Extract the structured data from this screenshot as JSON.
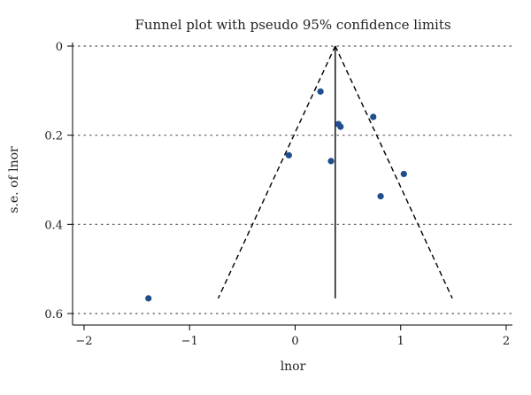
{
  "chart_data": {
    "type": "scatter",
    "title": "Funnel plot with pseudo 95% confidence limits",
    "xlabel": "lnor",
    "ylabel": "s.e. of lnor",
    "xlim": [
      -2,
      2
    ],
    "ylim": [
      0,
      0.6
    ],
    "y_reversed": true,
    "x_ticks": [
      -2,
      -1,
      0,
      1,
      2
    ],
    "x_tick_labels": [
      "−2",
      "−1",
      "0",
      "1",
      "2"
    ],
    "y_ticks": [
      0,
      0.2,
      0.4,
      0.6
    ],
    "y_tick_labels": [
      "0",
      "0.2",
      "0.4",
      "0.6"
    ],
    "grid": "horizontal dotted",
    "points": [
      {
        "x": 0.24,
        "y": 0.102
      },
      {
        "x": 0.41,
        "y": 0.175
      },
      {
        "x": 0.43,
        "y": 0.181
      },
      {
        "x": 0.74,
        "y": 0.159
      },
      {
        "x": -0.06,
        "y": 0.245
      },
      {
        "x": 0.34,
        "y": 0.258
      },
      {
        "x": 1.03,
        "y": 0.287
      },
      {
        "x": 0.81,
        "y": 0.337
      },
      {
        "x": -1.39,
        "y": 0.566
      }
    ],
    "pooled_estimate": 0.38,
    "funnel_se_max": 0.566,
    "ci_z": 1.96,
    "colors": {
      "point": "#1f4e8c",
      "lines": "#000000",
      "grid": "#555555"
    }
  }
}
